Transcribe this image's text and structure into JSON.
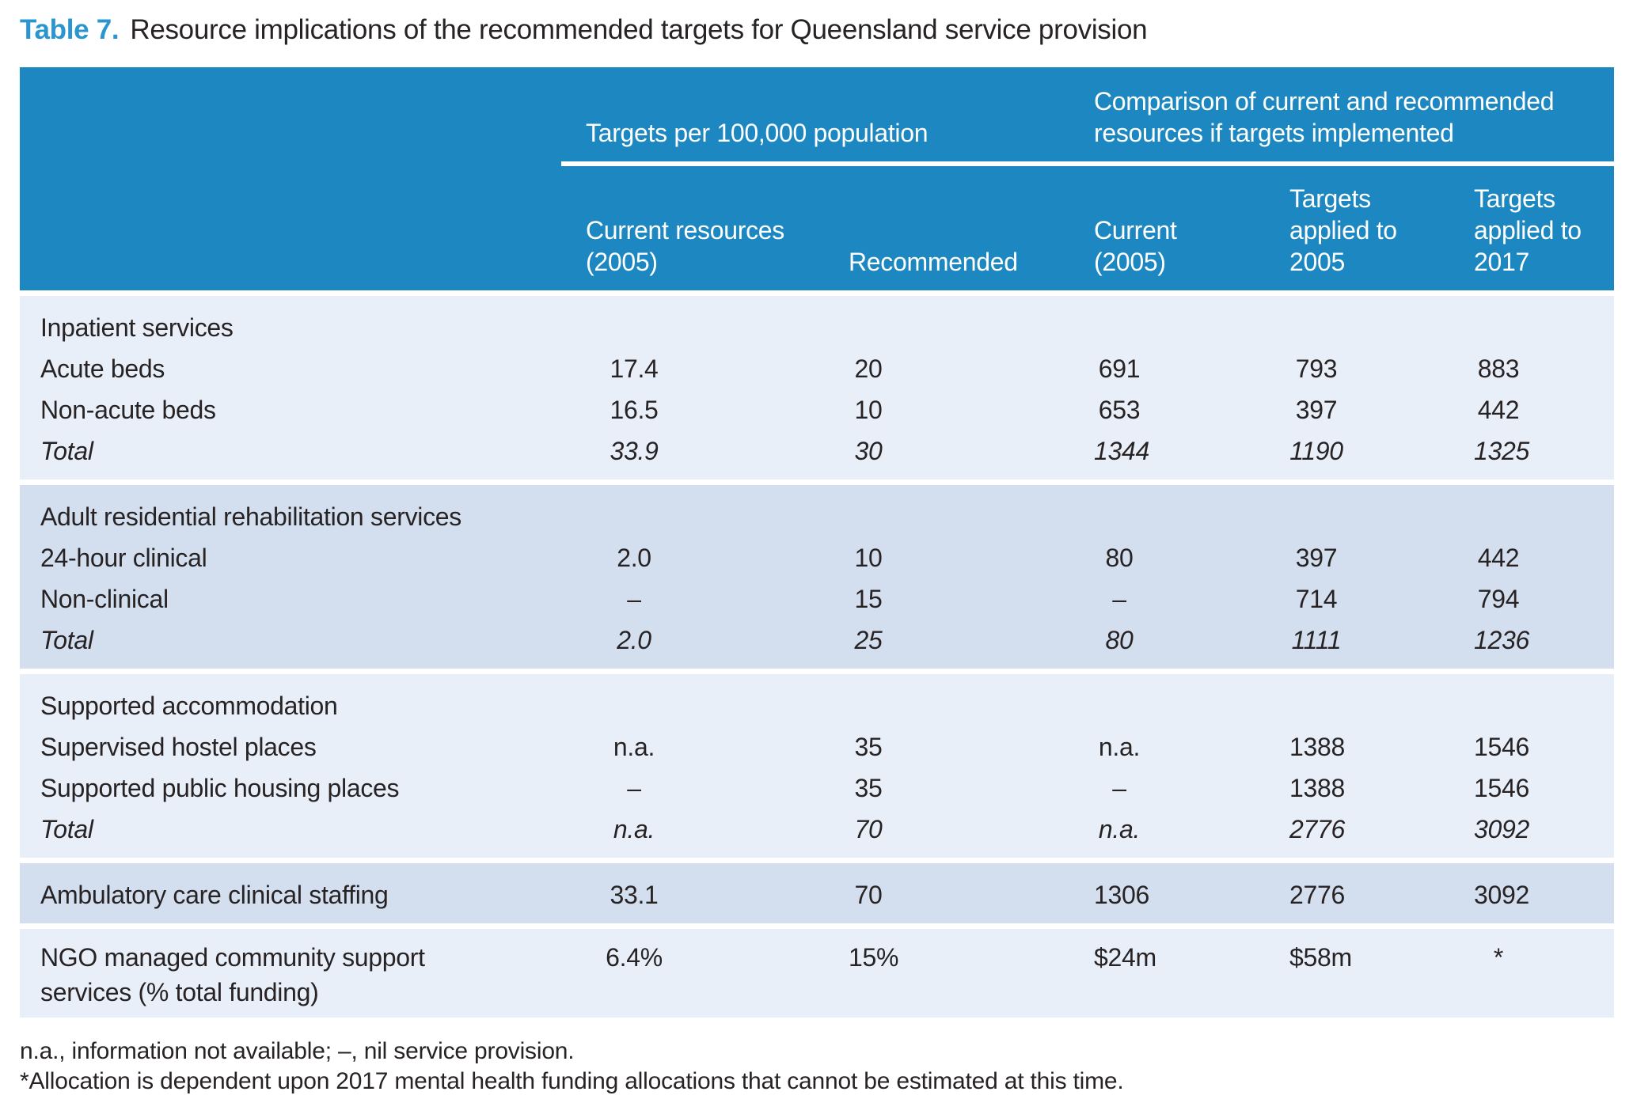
{
  "title": {
    "label": "Table 7.",
    "text": "Resource implications of the recommended targets for Queensland service provision"
  },
  "header": {
    "group_targets": "Targets per 100,000 population",
    "group_comparison_lines": [
      "Comparison of current and recommended",
      "resources if targets implemented"
    ],
    "columns": [
      {
        "name": "current-resources-2005",
        "lines": [
          "Current resources",
          "(2005)"
        ]
      },
      {
        "name": "recommended",
        "lines": [
          "Recommended"
        ]
      },
      {
        "name": "current-2005",
        "lines": [
          "Current",
          "(2005)"
        ]
      },
      {
        "name": "targets-applied-2005",
        "lines": [
          "Targets",
          "applied to",
          "2005"
        ]
      },
      {
        "name": "targets-applied-2017",
        "lines": [
          "Targets",
          "applied to",
          "2017"
        ]
      }
    ]
  },
  "sections": [
    {
      "tone": "light",
      "rows": [
        {
          "type": "header",
          "label_lines": [
            "Inpatient services"
          ],
          "values": [
            "",
            "",
            "",
            "",
            ""
          ]
        },
        {
          "type": "item",
          "label_lines": [
            "Acute beds"
          ],
          "values": [
            "17.4",
            "20",
            "691",
            "793",
            "883"
          ]
        },
        {
          "type": "item",
          "label_lines": [
            "Non-acute beds"
          ],
          "values": [
            "16.5",
            "10",
            "653",
            "397",
            "442"
          ]
        },
        {
          "type": "total",
          "label_lines": [
            "Total"
          ],
          "values": [
            "33.9",
            "30",
            "1344",
            "1190",
            "1325"
          ]
        }
      ]
    },
    {
      "tone": "dark",
      "rows": [
        {
          "type": "header",
          "label_lines": [
            "Adult residential rehabilitation services"
          ],
          "values": [
            "",
            "",
            "",
            "",
            ""
          ]
        },
        {
          "type": "item",
          "label_lines": [
            "24-hour clinical"
          ],
          "values": [
            "2.0",
            "10",
            "80",
            "397",
            "442"
          ]
        },
        {
          "type": "item",
          "label_lines": [
            "Non-clinical"
          ],
          "values": [
            "–",
            "15",
            "–",
            "714",
            "794"
          ]
        },
        {
          "type": "total",
          "label_lines": [
            "Total"
          ],
          "values": [
            "2.0",
            "25",
            "80",
            "1111",
            "1236"
          ]
        }
      ]
    },
    {
      "tone": "light",
      "rows": [
        {
          "type": "header",
          "label_lines": [
            "Supported accommodation"
          ],
          "values": [
            "",
            "",
            "",
            "",
            ""
          ]
        },
        {
          "type": "item",
          "label_lines": [
            "Supervised hostel places"
          ],
          "values": [
            "n.a.",
            "35",
            "n.a.",
            "1388",
            "1546"
          ]
        },
        {
          "type": "item",
          "label_lines": [
            "Supported public housing places"
          ],
          "values": [
            "–",
            "35",
            "–",
            "1388",
            "1546"
          ]
        },
        {
          "type": "total",
          "label_lines": [
            "Total"
          ],
          "values": [
            "n.a.",
            "70",
            "n.a.",
            "2776",
            "3092"
          ]
        }
      ]
    },
    {
      "tone": "dark",
      "rows": [
        {
          "type": "item",
          "label_lines": [
            "Ambulatory care clinical staffing"
          ],
          "values": [
            "33.1",
            "70",
            "1306",
            "2776",
            "3092"
          ]
        }
      ]
    },
    {
      "tone": "light",
      "rows": [
        {
          "type": "item",
          "label_lines": [
            "NGO managed community support",
            "services (% total funding)"
          ],
          "values": [
            "6.4%",
            "15%",
            "$24m",
            "$58m",
            "*"
          ]
        }
      ]
    }
  ],
  "footnotes": [
    "n.a., information not available; –, nil service provision.",
    "*Allocation is dependent upon 2017 mental health funding allocations that cannot be estimated at this time."
  ],
  "colors": {
    "header_blue": "#1c87c0",
    "row_light": "#e9eff8",
    "row_dark": "#d3dfef",
    "title_blue": "#2b95d0",
    "text": "#272324"
  }
}
